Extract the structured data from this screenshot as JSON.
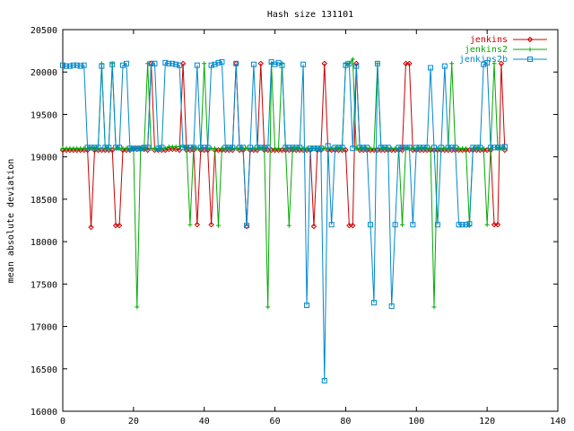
{
  "chart_data": {
    "type": "line",
    "title": "Hash size 131101",
    "xlabel": "",
    "ylabel": "mean absolute deviation",
    "xlim": [
      0,
      140
    ],
    "ylim": [
      16000,
      20500
    ],
    "xticks": [
      0,
      20,
      40,
      60,
      80,
      100,
      120,
      140
    ],
    "yticks": [
      16000,
      16500,
      17000,
      17500,
      18000,
      18500,
      19000,
      19500,
      20000,
      20500
    ],
    "grid": false,
    "legend_position": "top-right",
    "series": [
      {
        "name": "jenkins",
        "color": "#cc0000",
        "marker": "diamond",
        "x": [
          0,
          1,
          2,
          3,
          4,
          5,
          6,
          7,
          8,
          9,
          10,
          11,
          12,
          13,
          14,
          15,
          16,
          17,
          18,
          19,
          20,
          21,
          22,
          23,
          24,
          25,
          26,
          27,
          28,
          29,
          30,
          31,
          32,
          33,
          34,
          35,
          36,
          37,
          38,
          39,
          40,
          41,
          42,
          43,
          44,
          45,
          46,
          47,
          48,
          49,
          50,
          51,
          52,
          53,
          54,
          55,
          56,
          57,
          58,
          59,
          60,
          61,
          62,
          63,
          64,
          65,
          66,
          67,
          68,
          69,
          70,
          71,
          72,
          73,
          74,
          75,
          76,
          77,
          78,
          79,
          80,
          81,
          82,
          83,
          84,
          85,
          86,
          87,
          88,
          89,
          90,
          91,
          92,
          93,
          94,
          95,
          96,
          97,
          98,
          99,
          100,
          101,
          102,
          103,
          104,
          105,
          106,
          107,
          108,
          109,
          110,
          111,
          112,
          113,
          114,
          115,
          116,
          117,
          118,
          119,
          120,
          121,
          122,
          123,
          124,
          125
        ],
        "y": [
          19080,
          19080,
          19080,
          19080,
          19080,
          19080,
          19080,
          19080,
          18170,
          19080,
          19080,
          19080,
          19080,
          19080,
          19080,
          18190,
          18190,
          19080,
          19080,
          19080,
          19090,
          19090,
          19090,
          19090,
          19080,
          20100,
          19080,
          19080,
          19080,
          19080,
          19090,
          19090,
          19090,
          19080,
          20100,
          19080,
          19080,
          19080,
          18200,
          19080,
          19080,
          19080,
          18200,
          19080,
          19080,
          19080,
          19080,
          19080,
          19080,
          20100,
          19080,
          19080,
          18180,
          19080,
          19080,
          19080,
          20100,
          19080,
          19080,
          19080,
          19080,
          19080,
          19080,
          19080,
          19080,
          19080,
          19080,
          19080,
          19080,
          19080,
          19080,
          18180,
          19080,
          19080,
          20100,
          19080,
          19080,
          19080,
          19080,
          19080,
          19080,
          18190,
          18190,
          20100,
          19080,
          19080,
          19080,
          19080,
          19080,
          19080,
          19080,
          19080,
          19080,
          19080,
          19080,
          19080,
          19080,
          20100,
          20100,
          19080,
          19080,
          19080,
          19080,
          19080,
          19080,
          19080,
          19080,
          19080,
          19080,
          19080,
          19080,
          19080,
          19080,
          19080,
          19080,
          19080,
          19080,
          19080,
          19080,
          19080,
          19080,
          19080,
          18200,
          18200,
          20100,
          19080
        ]
      },
      {
        "name": "jenkins2",
        "color": "#00aa00",
        "marker": "plus",
        "x": [
          0,
          1,
          2,
          3,
          4,
          5,
          6,
          7,
          8,
          9,
          10,
          11,
          12,
          13,
          14,
          15,
          16,
          17,
          18,
          19,
          20,
          21,
          22,
          23,
          24,
          25,
          26,
          27,
          28,
          29,
          30,
          31,
          32,
          33,
          34,
          35,
          36,
          37,
          38,
          39,
          40,
          41,
          42,
          43,
          44,
          45,
          46,
          47,
          48,
          49,
          50,
          51,
          52,
          53,
          54,
          55,
          56,
          57,
          58,
          59,
          60,
          61,
          62,
          63,
          64,
          65,
          66,
          67,
          68,
          69,
          70,
          71,
          72,
          73,
          74,
          75,
          76,
          77,
          78,
          79,
          80,
          81,
          82,
          83,
          84,
          85,
          86,
          87,
          88,
          89,
          90,
          91,
          92,
          93,
          94,
          95,
          96,
          97,
          98,
          99,
          100,
          101,
          102,
          103,
          104,
          105,
          106,
          107,
          108,
          109,
          110,
          111,
          112,
          113,
          114,
          115,
          116,
          117,
          118,
          119,
          120,
          121,
          122,
          123,
          124,
          125
        ],
        "y": [
          19100,
          19100,
          19100,
          19100,
          19100,
          19100,
          19100,
          19100,
          19100,
          19100,
          19100,
          20100,
          19100,
          19100,
          20100,
          19100,
          19100,
          19100,
          19100,
          19100,
          19100,
          17230,
          19100,
          19100,
          20100,
          19100,
          19100,
          19100,
          19100,
          19100,
          19120,
          19120,
          19120,
          19120,
          19120,
          19120,
          18200,
          19120,
          19100,
          19100,
          20100,
          19100,
          19100,
          19100,
          18190,
          19100,
          19100,
          19100,
          19100,
          19100,
          19100,
          19100,
          19100,
          19100,
          19100,
          19100,
          19100,
          19100,
          17230,
          20100,
          19100,
          19100,
          20100,
          19100,
          18190,
          19100,
          19100,
          19100,
          19100,
          19100,
          19100,
          19100,
          19100,
          19100,
          19100,
          19100,
          19100,
          19100,
          19100,
          19100,
          20100,
          20100,
          20150,
          19100,
          19100,
          19100,
          19100,
          19100,
          19100,
          20100,
          19100,
          19100,
          19100,
          19100,
          19100,
          19100,
          18200,
          19100,
          19100,
          19100,
          19100,
          19100,
          19100,
          19100,
          19100,
          17230,
          19100,
          19100,
          19100,
          19100,
          20100,
          19100,
          19100,
          19100,
          19100,
          18190,
          19100,
          19100,
          19100,
          19100,
          18200,
          19100,
          20100,
          19100,
          19100,
          19100
        ]
      },
      {
        "name": "jenkins2b",
        "color": "#0088cc",
        "marker": "square",
        "x": [
          0,
          1,
          2,
          3,
          4,
          5,
          6,
          7,
          8,
          9,
          10,
          11,
          12,
          13,
          14,
          15,
          16,
          17,
          18,
          19,
          20,
          21,
          22,
          23,
          24,
          25,
          26,
          27,
          28,
          29,
          30,
          31,
          32,
          33,
          34,
          35,
          36,
          37,
          38,
          39,
          40,
          41,
          42,
          43,
          44,
          45,
          46,
          47,
          48,
          49,
          50,
          51,
          52,
          53,
          54,
          55,
          56,
          57,
          58,
          59,
          60,
          61,
          62,
          63,
          64,
          65,
          66,
          67,
          68,
          69,
          70,
          71,
          72,
          73,
          74,
          75,
          76,
          77,
          78,
          79,
          80,
          81,
          82,
          83,
          84,
          85,
          86,
          87,
          88,
          89,
          90,
          91,
          92,
          93,
          94,
          95,
          96,
          97,
          98,
          99,
          100,
          101,
          102,
          103,
          104,
          105,
          106,
          107,
          108,
          109,
          110,
          111,
          112,
          113,
          114,
          115,
          116,
          117,
          118,
          119,
          120,
          121,
          122,
          123,
          124,
          125
        ],
        "y": [
          20080,
          20070,
          20070,
          20080,
          20080,
          20070,
          20080,
          19110,
          19110,
          19110,
          19110,
          20070,
          19110,
          19110,
          20090,
          19110,
          19110,
          20080,
          20100,
          19100,
          19100,
          19100,
          19100,
          19110,
          19110,
          20100,
          20100,
          19100,
          19110,
          20110,
          20100,
          20100,
          20090,
          20080,
          19110,
          19110,
          19110,
          19110,
          20080,
          19110,
          19110,
          19110,
          20080,
          20090,
          20110,
          20120,
          19110,
          19110,
          19110,
          20100,
          19110,
          19110,
          18190,
          19110,
          20090,
          19110,
          19110,
          19110,
          19110,
          20120,
          20090,
          20110,
          20080,
          19110,
          19110,
          19110,
          19110,
          19110,
          20090,
          17250,
          19100,
          19100,
          19100,
          19100,
          16360,
          19130,
          18200,
          19110,
          19110,
          19110,
          20080,
          20100,
          19100,
          20070,
          19110,
          19110,
          19110,
          18200,
          17280,
          20100,
          19110,
          19110,
          19110,
          17240,
          18200,
          19110,
          19110,
          19110,
          19110,
          18200,
          19110,
          19110,
          19110,
          19110,
          20050,
          19110,
          18200,
          19110,
          20070,
          19110,
          19110,
          19110,
          18200,
          18200,
          18200,
          18210,
          19110,
          19110,
          19110,
          20090,
          20110,
          19110,
          19110,
          19110,
          19110,
          19120
        ]
      }
    ]
  }
}
